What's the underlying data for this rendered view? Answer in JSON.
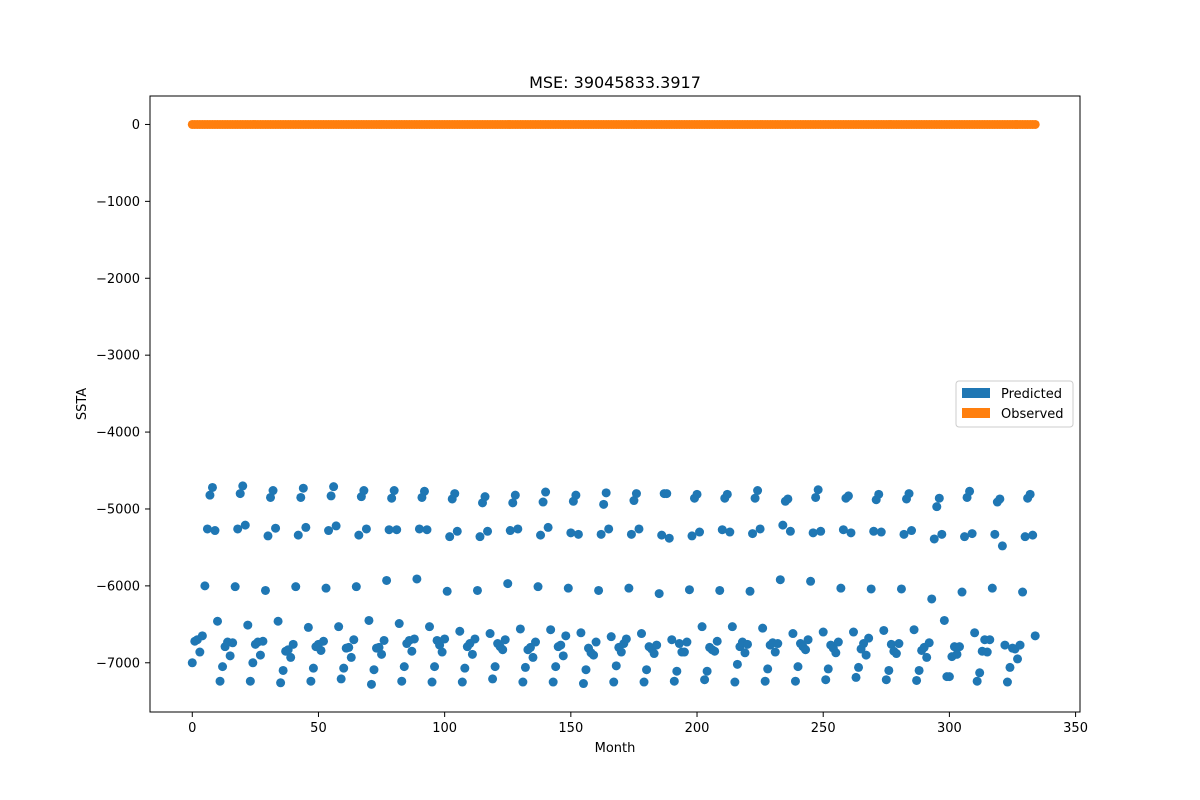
{
  "colors": {
    "predicted": "#1f77b4",
    "observed": "#ff7f0e"
  },
  "chart_data": {
    "type": "scatter",
    "title": "MSE: 39045833.3917",
    "xlabel": "Month",
    "ylabel": "SSTA",
    "xlim": [
      -16.75,
      351.75
    ],
    "ylim": [
      -7640,
      370
    ],
    "xticks": [
      0,
      50,
      100,
      150,
      200,
      250,
      300,
      350
    ],
    "yticks": [
      0,
      -1000,
      -2000,
      -3000,
      -4000,
      -5000,
      -6000,
      -7000
    ],
    "xtick_labels": [
      "0",
      "50",
      "100",
      "150",
      "200",
      "250",
      "300",
      "350"
    ],
    "ytick_labels": [
      "0",
      "−1000",
      "−2000",
      "−3000",
      "−4000",
      "−5000",
      "−6000",
      "−7000"
    ],
    "grid": false,
    "legend": {
      "placement": "center-right",
      "entries": [
        "Predicted",
        "Observed"
      ]
    },
    "series": [
      {
        "name": "Predicted",
        "color": "#1f77b4",
        "x": [
          0,
          1,
          2,
          3,
          4,
          5,
          6,
          7,
          8,
          9,
          10,
          11,
          12,
          13,
          14,
          15,
          16,
          17,
          18,
          19,
          20,
          21,
          22,
          23,
          24,
          25,
          26,
          27,
          28,
          29,
          30,
          31,
          32,
          33,
          34,
          35,
          36,
          37,
          38,
          39,
          40,
          41,
          42,
          43,
          44,
          45,
          46,
          47,
          48,
          49,
          50,
          51,
          52,
          53,
          54,
          55,
          56,
          57,
          58,
          59,
          60,
          61,
          62,
          63,
          64,
          65,
          66,
          67,
          68,
          69,
          70,
          71,
          72,
          73,
          74,
          75,
          76,
          77,
          78,
          79,
          80,
          81,
          82,
          83,
          84,
          85,
          86,
          87,
          88,
          89,
          90,
          91,
          92,
          93,
          94,
          95,
          96,
          97,
          98,
          99,
          100,
          101,
          102,
          103,
          104,
          105,
          106,
          107,
          108,
          109,
          110,
          111,
          112,
          113,
          114,
          115,
          116,
          117,
          118,
          119,
          120,
          121,
          122,
          123,
          124,
          125,
          126,
          127,
          128,
          129,
          130,
          131,
          132,
          133,
          134,
          135,
          136,
          137,
          138,
          139,
          140,
          141,
          142,
          143,
          144,
          145,
          146,
          147,
          148,
          149,
          150,
          151,
          152,
          153,
          154,
          155,
          156,
          157,
          158,
          159,
          160,
          161,
          162,
          163,
          164,
          165,
          166,
          167,
          168,
          169,
          170,
          171,
          172,
          173,
          174,
          175,
          176,
          177,
          178,
          179,
          180,
          181,
          182,
          183,
          184,
          185,
          186,
          187,
          188,
          189,
          190,
          191,
          192,
          193,
          194,
          195,
          196,
          197,
          198,
          199,
          200,
          201,
          202,
          203,
          204,
          205,
          206,
          207,
          208,
          209,
          210,
          211,
          212,
          213,
          214,
          215,
          216,
          217,
          218,
          219,
          220,
          221,
          222,
          223,
          224,
          225,
          226,
          227,
          228,
          229,
          230,
          231,
          232,
          233,
          234,
          235,
          236,
          237,
          238,
          239,
          240,
          241,
          242,
          243,
          244,
          245,
          246,
          247,
          248,
          249,
          250,
          251,
          252,
          253,
          254,
          255,
          256,
          257,
          258,
          259,
          260,
          261,
          262,
          263,
          264,
          265,
          266,
          267,
          268,
          269,
          270,
          271,
          272,
          273,
          274,
          275,
          276,
          277,
          278,
          279,
          280,
          281,
          282,
          283,
          284,
          285,
          286,
          287,
          288,
          289,
          290,
          291,
          292,
          293,
          294,
          295,
          296,
          297,
          298,
          299,
          300,
          301,
          302,
          303,
          304,
          305,
          306,
          307,
          308,
          309,
          310,
          311,
          312,
          313,
          314,
          315,
          316,
          317,
          318,
          319,
          320,
          321,
          322,
          323,
          324,
          325,
          326,
          327,
          328,
          329,
          330,
          331,
          332,
          333,
          334
        ],
        "y": [
          -7000,
          -6720,
          -6700,
          -6860,
          -6650,
          -6000,
          -5260,
          -4820,
          -4720,
          -5280,
          -6460,
          -7240,
          -7050,
          -6790,
          -6730,
          -6910,
          -6740,
          -6010,
          -5260,
          -4800,
          -4700,
          -5210,
          -6510,
          -7240,
          -7000,
          -6760,
          -6730,
          -6900,
          -6720,
          -6060,
          -5350,
          -4850,
          -4760,
          -5250,
          -6460,
          -7260,
          -7100,
          -6850,
          -6830,
          -6930,
          -6760,
          -6010,
          -5340,
          -4850,
          -4730,
          -5240,
          -6540,
          -7240,
          -7070,
          -6790,
          -6760,
          -6840,
          -6720,
          -6030,
          -5280,
          -4830,
          -4710,
          -5220,
          -6530,
          -7210,
          -7070,
          -6810,
          -6800,
          -6930,
          -6700,
          -6010,
          -5340,
          -4840,
          -4760,
          -5260,
          -6450,
          -7280,
          -7090,
          -6810,
          -6800,
          -6890,
          -6710,
          -5930,
          -5270,
          -4860,
          -4760,
          -5270,
          -6490,
          -7240,
          -7050,
          -6750,
          -6710,
          -6850,
          -6690,
          -5910,
          -5260,
          -4850,
          -4770,
          -5270,
          -6530,
          -7250,
          -7050,
          -6710,
          -6770,
          -6860,
          -6690,
          -6070,
          -5360,
          -4870,
          -4800,
          -5290,
          -6590,
          -7250,
          -7070,
          -6790,
          -6750,
          -6890,
          -6690,
          -6060,
          -5360,
          -4920,
          -4840,
          -5290,
          -6620,
          -7210,
          -7050,
          -6750,
          -6790,
          -6830,
          -6700,
          -5970,
          -5280,
          -4920,
          -4820,
          -5260,
          -6560,
          -7250,
          -7060,
          -6830,
          -6800,
          -6930,
          -6730,
          -6010,
          -5340,
          -4910,
          -4780,
          -5240,
          -6570,
          -7250,
          -7050,
          -6790,
          -6770,
          -6910,
          -6650,
          -6030,
          -5310,
          -4900,
          -4820,
          -5330,
          -6610,
          -7270,
          -7090,
          -6810,
          -6870,
          -6900,
          -6730,
          -6060,
          -5330,
          -4940,
          -4790,
          -5260,
          -6660,
          -7250,
          -7040,
          -6800,
          -6860,
          -6750,
          -6690,
          -6030,
          -5330,
          -4890,
          -4800,
          -5260,
          -6620,
          -7250,
          -7090,
          -6790,
          -6820,
          -6880,
          -6770,
          -6100,
          -5340,
          -4800,
          -4800,
          -5380,
          -6700,
          -7240,
          -7110,
          -6750,
          -6860,
          -6860,
          -6730,
          -6050,
          -5350,
          -4860,
          -4810,
          -5300,
          -6530,
          -7220,
          -7110,
          -6800,
          -6830,
          -6850,
          -6720,
          -6060,
          -5270,
          -4860,
          -4810,
          -5300,
          -6530,
          -7250,
          -7020,
          -6790,
          -6730,
          -6870,
          -6760,
          -6070,
          -5320,
          -4860,
          -4760,
          -5260,
          -6550,
          -7240,
          -7080,
          -6770,
          -6740,
          -6860,
          -6750,
          -5920,
          -5210,
          -4900,
          -4870,
          -5290,
          -6620,
          -7240,
          -7050,
          -6750,
          -6790,
          -6830,
          -6700,
          -5940,
          -5310,
          -4850,
          -4750,
          -5290,
          -6600,
          -7220,
          -7080,
          -6770,
          -6810,
          -6870,
          -6730,
          -6030,
          -5270,
          -4860,
          -4830,
          -5310,
          -6600,
          -7190,
          -7060,
          -6820,
          -6750,
          -6900,
          -6680,
          -6040,
          -5290,
          -4880,
          -4810,
          -5300,
          -6580,
          -7220,
          -7100,
          -6760,
          -6850,
          -6880,
          -6750,
          -6040,
          -5330,
          -4870,
          -4800,
          -5280,
          -6570,
          -7230,
          -7100,
          -6840,
          -6800,
          -6930,
          -6740,
          -6170,
          -5390,
          -4970,
          -4860,
          -5330,
          -6450,
          -7180,
          -7180,
          -6920,
          -6790,
          -6890,
          -6790,
          -6080,
          -5360,
          -4850,
          -4770,
          -5320,
          -6610,
          -7240,
          -7130,
          -6850,
          -6700,
          -6860,
          -6700,
          -6030,
          -5330,
          -4910,
          -4870,
          -5480,
          -6770,
          -7250,
          -7060,
          -6810,
          -6820,
          -6950,
          -6770,
          -6080,
          -5360,
          -4860,
          -4810,
          -5340,
          -6650
        ]
      },
      {
        "name": "Observed",
        "color": "#ff7f0e",
        "x_range": [
          0,
          334
        ],
        "value": 0
      }
    ]
  }
}
